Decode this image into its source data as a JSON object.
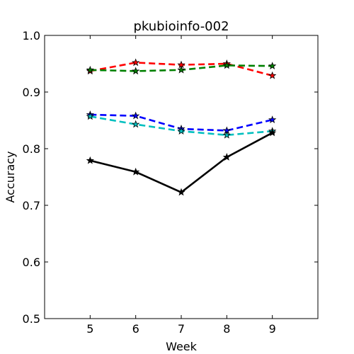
{
  "chart_data": {
    "type": "line",
    "title": "pkubioinfo-002",
    "xlabel": "Week",
    "ylabel": "Accuracy",
    "xlim": [
      4,
      10
    ],
    "ylim": [
      0.5,
      1.0
    ],
    "x_ticks": [
      "5",
      "6",
      "7",
      "8",
      "9"
    ],
    "y_ticks": [
      "0.5",
      "0.6",
      "0.7",
      "0.8",
      "0.9",
      "1.0"
    ],
    "grid": false,
    "x": [
      5,
      6,
      7,
      8,
      9
    ],
    "series": [
      {
        "color": "#ff0000",
        "style": "dashed",
        "marker": "star",
        "values": [
          0.937,
          0.952,
          0.948,
          0.95,
          0.929
        ]
      },
      {
        "color": "#008000",
        "style": "dashed",
        "marker": "star",
        "values": [
          0.939,
          0.937,
          0.939,
          0.947,
          0.946
        ]
      },
      {
        "color": "#0000ff",
        "style": "dashed",
        "marker": "star",
        "values": [
          0.86,
          0.858,
          0.835,
          0.832,
          0.851
        ]
      },
      {
        "color": "#00bfbf",
        "style": "dashed",
        "marker": "star",
        "values": [
          0.857,
          0.843,
          0.831,
          0.824,
          0.831
        ]
      },
      {
        "color": "#000000",
        "style": "solid",
        "marker": "star",
        "values": [
          0.779,
          0.759,
          0.723,
          0.785,
          0.828
        ]
      }
    ]
  }
}
